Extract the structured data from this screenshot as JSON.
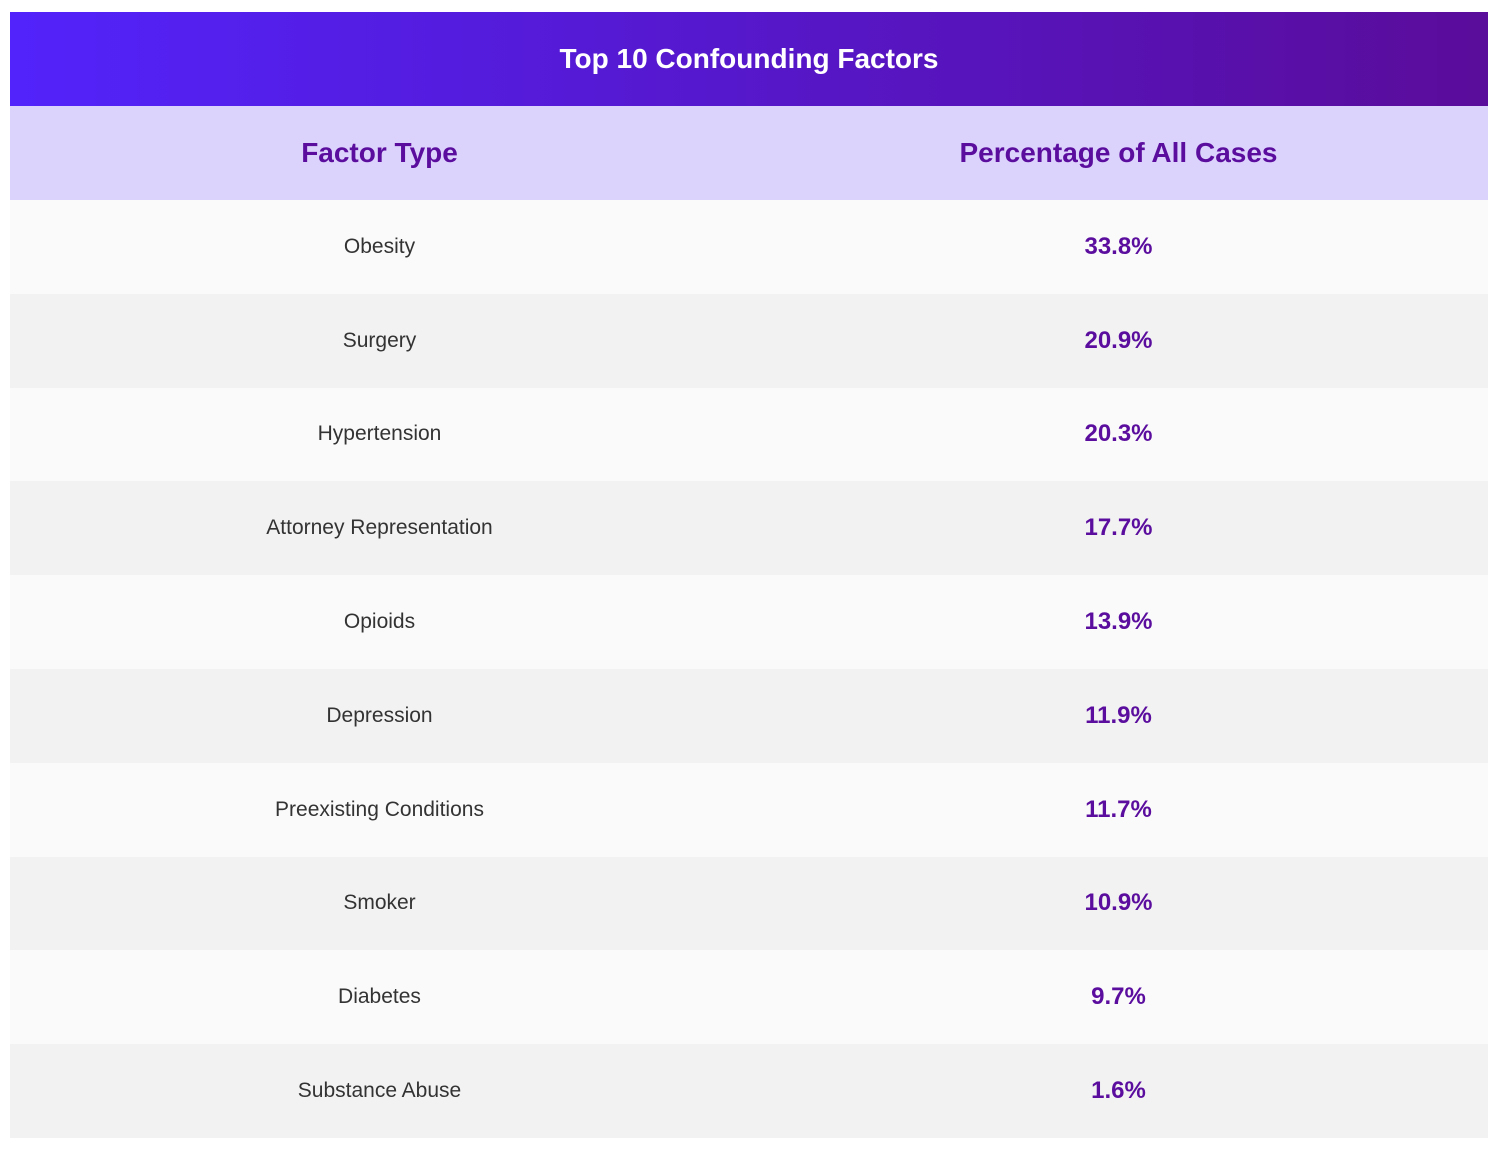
{
  "chart_data": {
    "type": "table",
    "title": "Top 10 Confounding Factors",
    "columns": [
      "Factor Type",
      "Percentage of All Cases"
    ],
    "categories": [
      "Obesity",
      "Surgery",
      "Hypertension",
      "Attorney Representation",
      "Opioids",
      "Depression",
      "Preexisting Conditions",
      "Smoker",
      "Diabetes",
      "Substance Abuse"
    ],
    "values": [
      33.8,
      20.9,
      20.3,
      17.7,
      13.9,
      11.9,
      11.7,
      10.9,
      9.7,
      1.6
    ],
    "display_values": [
      "33.8%",
      "20.9%",
      "20.3%",
      "17.7%",
      "13.9%",
      "11.9%",
      "11.7%",
      "10.9%",
      "9.7%",
      "1.6%"
    ]
  },
  "colors": {
    "title_gradient_start": "#5223fb",
    "title_gradient_end": "#5a0c9a",
    "header_background": "#dcd3fc",
    "accent_text": "#5b0e9e",
    "row_light": "#fafafa",
    "row_dark": "#f2f2f2",
    "body_text": "#333333"
  }
}
